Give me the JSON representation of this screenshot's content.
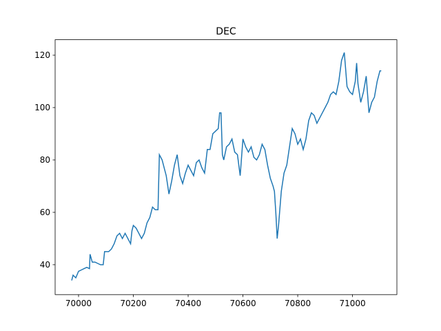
{
  "chart_data": {
    "type": "line",
    "title": "DEC",
    "x": [
      69975,
      69980,
      69990,
      70000,
      70010,
      70020,
      70030,
      70040,
      70042,
      70050,
      70060,
      70070,
      70080,
      70090,
      70095,
      70110,
      70120,
      70130,
      70140,
      70150,
      70160,
      70170,
      70180,
      70190,
      70195,
      70200,
      70210,
      70220,
      70230,
      70240,
      70250,
      70260,
      70270,
      70280,
      70290,
      70295,
      70305,
      70315,
      70320,
      70330,
      70340,
      70350,
      70360,
      70370,
      70380,
      70390,
      70400,
      70410,
      70420,
      70430,
      70440,
      70450,
      70460,
      70470,
      70480,
      70490,
      70500,
      70510,
      70515,
      70520,
      70525,
      70530,
      70540,
      70550,
      70560,
      70570,
      70580,
      70590,
      70600,
      70610,
      70620,
      70630,
      70640,
      70650,
      70660,
      70670,
      70680,
      70690,
      70700,
      70710,
      70715,
      70720,
      70725,
      70730,
      70740,
      70750,
      70760,
      70770,
      70780,
      70790,
      70800,
      70810,
      70820,
      70830,
      70840,
      70850,
      70860,
      70870,
      70880,
      70890,
      70900,
      70910,
      70920,
      70930,
      70940,
      70950,
      70960,
      70970,
      70980,
      70990,
      71000,
      71010,
      71015,
      71020,
      71030,
      71040,
      71050,
      71060,
      71070,
      71080,
      71090,
      71100,
      71105
    ],
    "series": [
      {
        "name": "DEC",
        "color": "#1f77b4",
        "values": [
          34,
          36,
          35,
          37.5,
          38,
          38.5,
          39,
          38.5,
          44,
          41,
          41,
          40.5,
          40,
          40,
          45,
          45,
          46,
          48,
          51,
          52,
          50,
          52,
          50,
          48,
          53,
          55,
          54,
          52,
          50,
          52,
          56,
          58,
          62,
          61,
          61,
          82,
          80,
          76,
          74,
          67,
          72,
          78,
          82,
          74,
          71,
          75,
          78,
          76,
          74,
          79,
          80,
          77,
          75,
          84,
          84,
          90,
          91,
          92,
          98,
          98,
          82,
          80,
          85,
          86,
          88,
          83,
          82,
          74,
          88,
          85,
          83,
          85,
          81,
          80,
          82,
          86,
          84,
          78,
          73,
          70,
          68,
          60,
          50,
          55,
          68,
          75,
          78,
          85,
          92,
          90,
          86,
          88,
          84,
          88,
          95,
          98,
          97,
          94,
          96,
          98,
          100,
          102,
          105,
          106,
          105,
          110,
          118,
          121,
          108,
          106,
          105,
          110,
          117,
          109,
          102,
          106,
          112,
          98,
          102,
          104,
          110,
          114,
          114
        ]
      }
    ],
    "xlim": [
      69914.5,
      71162
    ],
    "ylim": [
      28.6,
      125.9
    ],
    "xticks": [
      70000,
      70200,
      70400,
      70600,
      70800,
      71000
    ],
    "yticks": [
      40,
      60,
      80,
      100,
      120
    ]
  }
}
